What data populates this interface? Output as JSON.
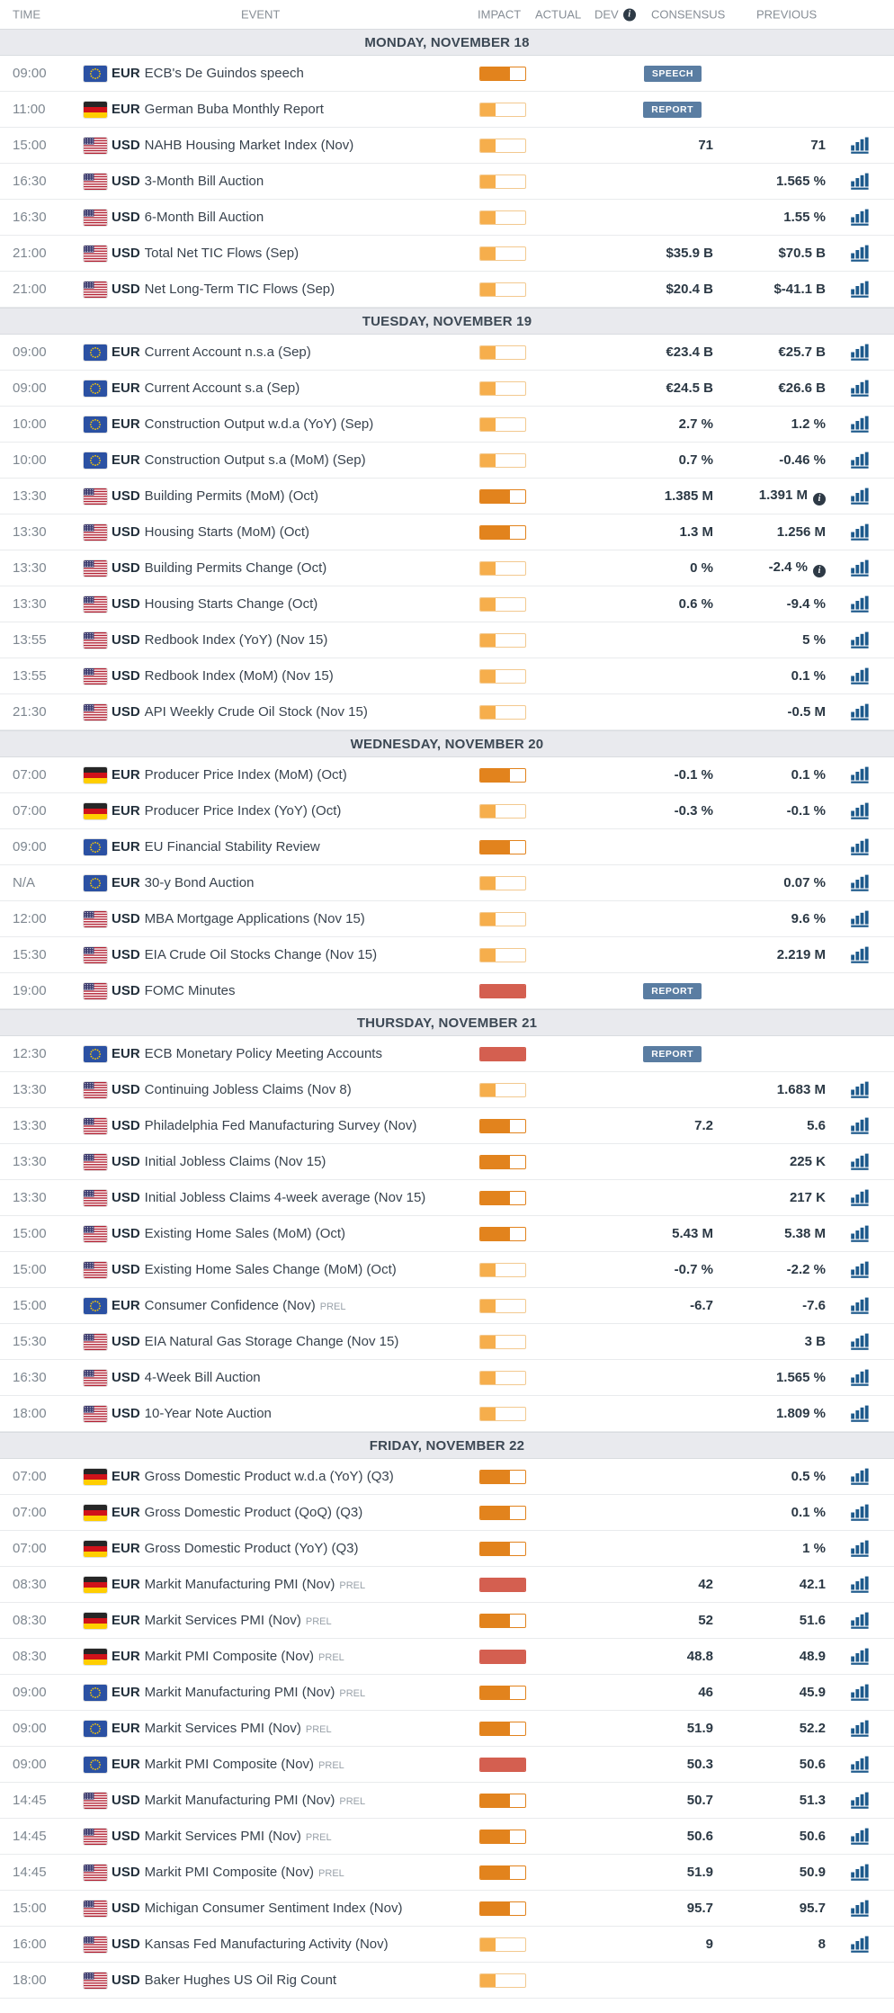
{
  "header": {
    "time": "TIME",
    "event": "EVENT",
    "impact": "IMPACT",
    "actual": "ACTUAL",
    "dev": "DEV",
    "consensus": "CONSENSUS",
    "previous": "PREVIOUS"
  },
  "icons": {
    "info": "i"
  },
  "colors": {
    "impact_low_fill": "#F6AE4C",
    "impact_low_border": "#F3C98F",
    "impact_medium": "#E2831D",
    "impact_high": "#D45F50",
    "badge_bg": "#5A7DA2",
    "chart_icon": "#1D5A8C",
    "day_header_bg": "#E9EAEE",
    "day_border": "#D9DCE0",
    "day_text": "#3C4854",
    "row_border": "#E9EBED",
    "header_text": "#878E96",
    "time_text": "#7E8790",
    "event_text": "#39434E",
    "currency_text": "#222F3B",
    "value_text": "#2B3844",
    "info_bg": "#2E3A46"
  },
  "sections": [
    {
      "day_label": "MONDAY, NOVEMBER 18",
      "rows": [
        {
          "time": "09:00",
          "flag": "eu",
          "currency": "EUR",
          "event": "ECB's De Guindos speech",
          "impact": "medium",
          "badge": "SPEECH",
          "consensus": "",
          "previous": "",
          "chart": false
        },
        {
          "time": "11:00",
          "flag": "de",
          "currency": "EUR",
          "event": "German Buba Monthly Report",
          "impact": "low",
          "badge": "REPORT",
          "consensus": "",
          "previous": "",
          "chart": false
        },
        {
          "time": "15:00",
          "flag": "us",
          "currency": "USD",
          "event": "NAHB Housing Market Index (Nov)",
          "impact": "low",
          "consensus": "71",
          "previous": "71",
          "chart": true
        },
        {
          "time": "16:30",
          "flag": "us",
          "currency": "USD",
          "event": "3-Month Bill Auction",
          "impact": "low",
          "consensus": "",
          "previous": "1.565 %",
          "chart": true
        },
        {
          "time": "16:30",
          "flag": "us",
          "currency": "USD",
          "event": "6-Month Bill Auction",
          "impact": "low",
          "consensus": "",
          "previous": "1.55 %",
          "chart": true
        },
        {
          "time": "21:00",
          "flag": "us",
          "currency": "USD",
          "event": "Total Net TIC Flows (Sep)",
          "impact": "low",
          "consensus": "$35.9 B",
          "previous": "$70.5 B",
          "chart": true
        },
        {
          "time": "21:00",
          "flag": "us",
          "currency": "USD",
          "event": "Net Long-Term TIC Flows (Sep)",
          "impact": "low",
          "consensus": "$20.4 B",
          "previous": "$-41.1 B",
          "chart": true
        }
      ]
    },
    {
      "day_label": "TUESDAY, NOVEMBER 19",
      "rows": [
        {
          "time": "09:00",
          "flag": "eu",
          "currency": "EUR",
          "event": "Current Account n.s.a (Sep)",
          "impact": "low",
          "consensus": "€23.4 B",
          "previous": "€25.7 B",
          "chart": true
        },
        {
          "time": "09:00",
          "flag": "eu",
          "currency": "EUR",
          "event": "Current Account s.a (Sep)",
          "impact": "low",
          "consensus": "€24.5 B",
          "previous": "€26.6 B",
          "chart": true
        },
        {
          "time": "10:00",
          "flag": "eu",
          "currency": "EUR",
          "event": "Construction Output w.d.a (YoY) (Sep)",
          "impact": "low",
          "consensus": "2.7 %",
          "previous": "1.2 %",
          "chart": true
        },
        {
          "time": "10:00",
          "flag": "eu",
          "currency": "EUR",
          "event": "Construction Output s.a (MoM) (Sep)",
          "impact": "low",
          "consensus": "0.7 %",
          "previous": "-0.46 %",
          "chart": true
        },
        {
          "time": "13:30",
          "flag": "us",
          "currency": "USD",
          "event": "Building Permits (MoM) (Oct)",
          "impact": "medium",
          "consensus": "1.385 M",
          "previous": "1.391 M",
          "previous_info": true,
          "chart": true
        },
        {
          "time": "13:30",
          "flag": "us",
          "currency": "USD",
          "event": "Housing Starts (MoM) (Oct)",
          "impact": "medium",
          "consensus": "1.3 M",
          "previous": "1.256 M",
          "chart": true
        },
        {
          "time": "13:30",
          "flag": "us",
          "currency": "USD",
          "event": "Building Permits Change (Oct)",
          "impact": "low",
          "consensus": "0 %",
          "previous": "-2.4 %",
          "previous_info": true,
          "chart": true
        },
        {
          "time": "13:30",
          "flag": "us",
          "currency": "USD",
          "event": "Housing Starts Change (Oct)",
          "impact": "low",
          "consensus": "0.6 %",
          "previous": "-9.4 %",
          "chart": true
        },
        {
          "time": "13:55",
          "flag": "us",
          "currency": "USD",
          "event": "Redbook Index (YoY) (Nov 15)",
          "impact": "low",
          "consensus": "",
          "previous": "5 %",
          "chart": true
        },
        {
          "time": "13:55",
          "flag": "us",
          "currency": "USD",
          "event": "Redbook Index (MoM) (Nov 15)",
          "impact": "low",
          "consensus": "",
          "previous": "0.1 %",
          "chart": true
        },
        {
          "time": "21:30",
          "flag": "us",
          "currency": "USD",
          "event": "API Weekly Crude Oil Stock (Nov 15)",
          "impact": "low",
          "consensus": "",
          "previous": "-0.5 M",
          "chart": true
        }
      ]
    },
    {
      "day_label": "WEDNESDAY, NOVEMBER 20",
      "rows": [
        {
          "time": "07:00",
          "flag": "de",
          "currency": "EUR",
          "event": "Producer Price Index (MoM) (Oct)",
          "impact": "medium",
          "consensus": "-0.1 %",
          "previous": "0.1 %",
          "chart": true
        },
        {
          "time": "07:00",
          "flag": "de",
          "currency": "EUR",
          "event": "Producer Price Index (YoY) (Oct)",
          "impact": "low",
          "consensus": "-0.3 %",
          "previous": "-0.1 %",
          "chart": true
        },
        {
          "time": "09:00",
          "flag": "eu",
          "currency": "EUR",
          "event": "EU Financial Stability Review",
          "impact": "medium",
          "consensus": "",
          "previous": "",
          "chart": true
        },
        {
          "time": "N/A",
          "flag": "eu",
          "currency": "EUR",
          "event": "30-y Bond Auction",
          "impact": "low",
          "consensus": "",
          "previous": "0.07 %",
          "chart": true
        },
        {
          "time": "12:00",
          "flag": "us",
          "currency": "USD",
          "event": "MBA Mortgage Applications (Nov 15)",
          "impact": "low",
          "consensus": "",
          "previous": "9.6 %",
          "chart": true
        },
        {
          "time": "15:30",
          "flag": "us",
          "currency": "USD",
          "event": "EIA Crude Oil Stocks Change (Nov 15)",
          "impact": "low",
          "consensus": "",
          "previous": "2.219 M",
          "chart": true
        },
        {
          "time": "19:00",
          "flag": "us",
          "currency": "USD",
          "event": "FOMC Minutes",
          "impact": "high",
          "badge": "REPORT",
          "consensus": "",
          "previous": "",
          "chart": false
        }
      ]
    },
    {
      "day_label": "THURSDAY, NOVEMBER 21",
      "rows": [
        {
          "time": "12:30",
          "flag": "eu",
          "currency": "EUR",
          "event": "ECB Monetary Policy Meeting Accounts",
          "impact": "high",
          "badge": "REPORT",
          "consensus": "",
          "previous": "",
          "chart": false
        },
        {
          "time": "13:30",
          "flag": "us",
          "currency": "USD",
          "event": "Continuing Jobless Claims (Nov 8)",
          "impact": "low",
          "consensus": "",
          "previous": "1.683 M",
          "chart": true
        },
        {
          "time": "13:30",
          "flag": "us",
          "currency": "USD",
          "event": "Philadelphia Fed Manufacturing Survey (Nov)",
          "impact": "medium",
          "consensus": "7.2",
          "previous": "5.6",
          "chart": true
        },
        {
          "time": "13:30",
          "flag": "us",
          "currency": "USD",
          "event": "Initial Jobless Claims (Nov 15)",
          "impact": "medium",
          "consensus": "",
          "previous": "225 K",
          "chart": true
        },
        {
          "time": "13:30",
          "flag": "us",
          "currency": "USD",
          "event": "Initial Jobless Claims 4-week average (Nov 15)",
          "impact": "medium",
          "consensus": "",
          "previous": "217 K",
          "chart": true
        },
        {
          "time": "15:00",
          "flag": "us",
          "currency": "USD",
          "event": "Existing Home Sales (MoM) (Oct)",
          "impact": "medium",
          "consensus": "5.43 M",
          "previous": "5.38 M",
          "chart": true
        },
        {
          "time": "15:00",
          "flag": "us",
          "currency": "USD",
          "event": "Existing Home Sales Change (MoM) (Oct)",
          "impact": "low",
          "consensus": "-0.7 %",
          "previous": "-2.2 %",
          "chart": true
        },
        {
          "time": "15:00",
          "flag": "eu",
          "currency": "EUR",
          "event": "Consumer Confidence (Nov)",
          "prel": true,
          "impact": "low",
          "consensus": "-6.7",
          "previous": "-7.6",
          "chart": true
        },
        {
          "time": "15:30",
          "flag": "us",
          "currency": "USD",
          "event": "EIA Natural Gas Storage Change (Nov 15)",
          "impact": "low",
          "consensus": "",
          "previous": "3 B",
          "chart": true
        },
        {
          "time": "16:30",
          "flag": "us",
          "currency": "USD",
          "event": "4-Week Bill Auction",
          "impact": "low",
          "consensus": "",
          "previous": "1.565 %",
          "chart": true
        },
        {
          "time": "18:00",
          "flag": "us",
          "currency": "USD",
          "event": "10-Year Note Auction",
          "impact": "low",
          "consensus": "",
          "previous": "1.809 %",
          "chart": true
        }
      ]
    },
    {
      "day_label": "FRIDAY, NOVEMBER 22",
      "rows": [
        {
          "time": "07:00",
          "flag": "de",
          "currency": "EUR",
          "event": "Gross Domestic Product w.d.a (YoY) (Q3)",
          "impact": "medium",
          "consensus": "",
          "previous": "0.5 %",
          "chart": true
        },
        {
          "time": "07:00",
          "flag": "de",
          "currency": "EUR",
          "event": "Gross Domestic Product (QoQ) (Q3)",
          "impact": "medium",
          "consensus": "",
          "previous": "0.1 %",
          "chart": true
        },
        {
          "time": "07:00",
          "flag": "de",
          "currency": "EUR",
          "event": "Gross Domestic Product (YoY) (Q3)",
          "impact": "medium",
          "consensus": "",
          "previous": "1 %",
          "chart": true
        },
        {
          "time": "08:30",
          "flag": "de",
          "currency": "EUR",
          "event": "Markit Manufacturing PMI (Nov)",
          "prel": true,
          "impact": "high",
          "consensus": "42",
          "previous": "42.1",
          "chart": true
        },
        {
          "time": "08:30",
          "flag": "de",
          "currency": "EUR",
          "event": "Markit Services PMI (Nov)",
          "prel": true,
          "impact": "medium",
          "consensus": "52",
          "previous": "51.6",
          "chart": true
        },
        {
          "time": "08:30",
          "flag": "de",
          "currency": "EUR",
          "event": "Markit PMI Composite (Nov)",
          "prel": true,
          "impact": "high",
          "consensus": "48.8",
          "previous": "48.9",
          "chart": true
        },
        {
          "time": "09:00",
          "flag": "eu",
          "currency": "EUR",
          "event": "Markit Manufacturing PMI (Nov)",
          "prel": true,
          "impact": "medium",
          "consensus": "46",
          "previous": "45.9",
          "chart": true
        },
        {
          "time": "09:00",
          "flag": "eu",
          "currency": "EUR",
          "event": "Markit Services PMI (Nov)",
          "prel": true,
          "impact": "medium",
          "consensus": "51.9",
          "previous": "52.2",
          "chart": true
        },
        {
          "time": "09:00",
          "flag": "eu",
          "currency": "EUR",
          "event": "Markit PMI Composite (Nov)",
          "prel": true,
          "impact": "high",
          "consensus": "50.3",
          "previous": "50.6",
          "chart": true
        },
        {
          "time": "14:45",
          "flag": "us",
          "currency": "USD",
          "event": "Markit Manufacturing PMI (Nov)",
          "prel": true,
          "impact": "medium",
          "consensus": "50.7",
          "previous": "51.3",
          "chart": true
        },
        {
          "time": "14:45",
          "flag": "us",
          "currency": "USD",
          "event": "Markit Services PMI (Nov)",
          "prel": true,
          "impact": "medium",
          "consensus": "50.6",
          "previous": "50.6",
          "chart": true
        },
        {
          "time": "14:45",
          "flag": "us",
          "currency": "USD",
          "event": "Markit PMI Composite (Nov)",
          "prel": true,
          "impact": "medium",
          "consensus": "51.9",
          "previous": "50.9",
          "chart": true
        },
        {
          "time": "15:00",
          "flag": "us",
          "currency": "USD",
          "event": "Michigan Consumer Sentiment Index (Nov)",
          "impact": "medium",
          "consensus": "95.7",
          "previous": "95.7",
          "chart": true
        },
        {
          "time": "16:00",
          "flag": "us",
          "currency": "USD",
          "event": "Kansas Fed Manufacturing Activity (Nov)",
          "impact": "low",
          "consensus": "9",
          "previous": "8",
          "chart": true
        },
        {
          "time": "18:00",
          "flag": "us",
          "currency": "USD",
          "event": "Baker Hughes US Oil Rig Count",
          "impact": "low",
          "consensus": "",
          "previous": "",
          "chart": false
        }
      ]
    }
  ]
}
